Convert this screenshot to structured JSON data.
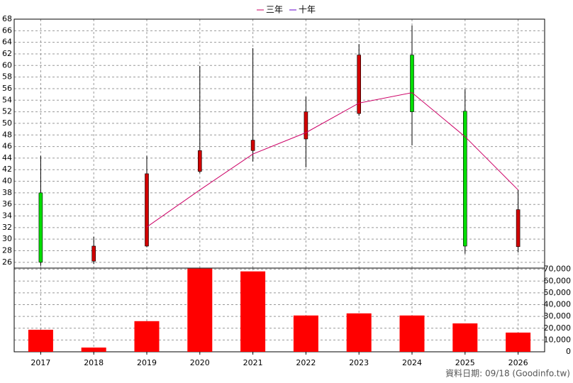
{
  "chart_data": [
    {
      "type": "candlestick",
      "open": [
        38,
        26.2,
        28.8,
        41.7,
        45.3,
        47.3,
        51.7,
        61.8,
        52.1,
        28.7
      ],
      "high": [
        44.4,
        30.4,
        44.4,
        59.9,
        63,
        54.6,
        63.7,
        66.9,
        55.9,
        38.5
      ],
      "low": [
        25.4,
        25.7,
        28.6,
        41.4,
        43.4,
        42.4,
        51.3,
        46.2,
        27.5,
        27.7
      ],
      "close": [
        26,
        28.8,
        41.3,
        45.3,
        47.1,
        52,
        61.8,
        52,
        28.8,
        35.1
      ],
      "up_color": "#d00000",
      "down_color": "#00dd00",
      "series": [
        {
          "name": "三年",
          "color": "#cc0066",
          "values": [
            null,
            null,
            32.1,
            38.5,
            44.7,
            48.4,
            53.5,
            55.3,
            47.7,
            38.5
          ]
        },
        {
          "name": "十年",
          "color": "#6600cc",
          "values": [
            null,
            null,
            null,
            null,
            null,
            null,
            null,
            null,
            null,
            null
          ]
        }
      ],
      "ylim": [
        25,
        68
      ],
      "yticks": [
        26,
        28,
        30,
        32,
        34,
        36,
        38,
        40,
        42,
        44,
        46,
        48,
        50,
        52,
        54,
        56,
        58,
        60,
        62,
        64,
        66,
        68
      ],
      "grid": true
    },
    {
      "type": "bar",
      "categories": [
        "2017",
        "2018",
        "2019",
        "2020",
        "2021",
        "2022",
        "2023",
        "2024",
        "2025",
        "2026"
      ],
      "values": [
        18700,
        3600,
        26000,
        70600,
        68200,
        30800,
        32600,
        30800,
        24100,
        16300
      ],
      "color": "#ff0000",
      "ylim": [
        0,
        71000
      ],
      "yticks": [
        0,
        {
          "value": 10000,
          "label": "10,000"
        },
        {
          "value": 20000,
          "label": "20,000"
        },
        {
          "value": 30000,
          "label": "30,000"
        },
        {
          "value": 40000,
          "label": "40,000"
        },
        {
          "value": 50000,
          "label": "50,000"
        },
        {
          "value": 60000,
          "label": "60,000"
        },
        {
          "value": 70000,
          "label": "70,000"
        }
      ],
      "grid": true
    }
  ],
  "footer": "資料日期: 09/18  (Goodinfo.tw)"
}
